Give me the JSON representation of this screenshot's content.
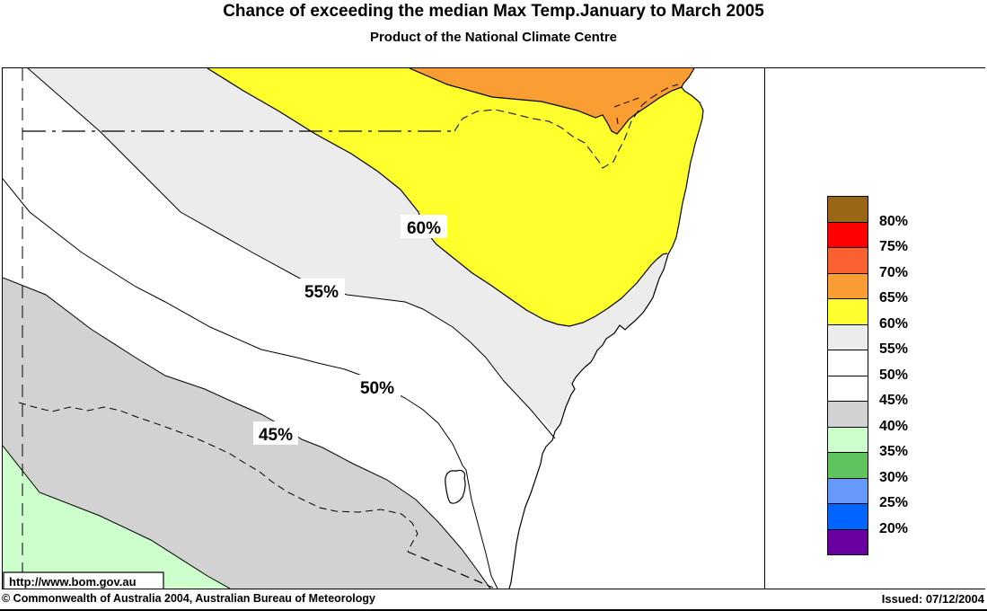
{
  "header": {
    "title": "Chance of exceeding the median Max Temp.January to March 2005",
    "subtitle": "Product of the National Climate Centre"
  },
  "map": {
    "contour_labels": [
      {
        "text": "60%"
      },
      {
        "text": "55%"
      },
      {
        "text": "50%"
      },
      {
        "text": "45%"
      }
    ],
    "watermark": "http://www.bom.gov.au",
    "map_data": {
      "type": "filled_contour_map",
      "region": "New South Wales, Australia",
      "quantity": "Chance of exceeding the median maximum temperature (%)",
      "labeled_contours_percent": [
        60,
        55,
        50,
        45
      ],
      "band_fills": [
        {
          "range": "65-70%",
          "color": "#FA9D33",
          "location": "far north / top centre-right"
        },
        {
          "range": "60-65%",
          "color": "#FFFF2E",
          "location": "north-east, dipping to central coast"
        },
        {
          "range": "55-60%",
          "color": "#ECECEC",
          "location": "band from north-west to coast"
        },
        {
          "range": "45-55%",
          "color": "#FFFFFF",
          "location": "central band"
        },
        {
          "range": "40-45%",
          "color": "#D2D2D2",
          "location": "south-west"
        },
        {
          "range": "35-40%",
          "color": "#CCFFCC",
          "location": "far south-west corner"
        }
      ]
    }
  },
  "legend": {
    "swatches": [
      {
        "name": "above-80",
        "color": "#996615"
      },
      {
        "name": "75-80",
        "color": "#FE0000"
      },
      {
        "name": "70-75",
        "color": "#FA6132"
      },
      {
        "name": "65-70",
        "color": "#FA9D33"
      },
      {
        "name": "60-65",
        "color": "#FFFF2E"
      },
      {
        "name": "55-60",
        "color": "#ECECEC"
      },
      {
        "name": "50-55",
        "color": "#FFFFFF"
      },
      {
        "name": "45-50",
        "color": "#FFFFFF"
      },
      {
        "name": "40-45",
        "color": "#D2D2D2"
      },
      {
        "name": "35-40",
        "color": "#CCFFCC"
      },
      {
        "name": "30-35",
        "color": "#5FC35F"
      },
      {
        "name": "25-30",
        "color": "#6699FA"
      },
      {
        "name": "20-25",
        "color": "#0064FE"
      },
      {
        "name": "below-20",
        "color": "#6A00A0"
      }
    ],
    "labels": [
      "80%",
      "75%",
      "70%",
      "65%",
      "60%",
      "55%",
      "50%",
      "45%",
      "40%",
      "35%",
      "30%",
      "25%",
      "20%"
    ]
  },
  "footer": {
    "left": "© Commonwealth of Australia 2004, Australian Bureau of Meteorology",
    "right": "Issued: 07/12/2004"
  }
}
